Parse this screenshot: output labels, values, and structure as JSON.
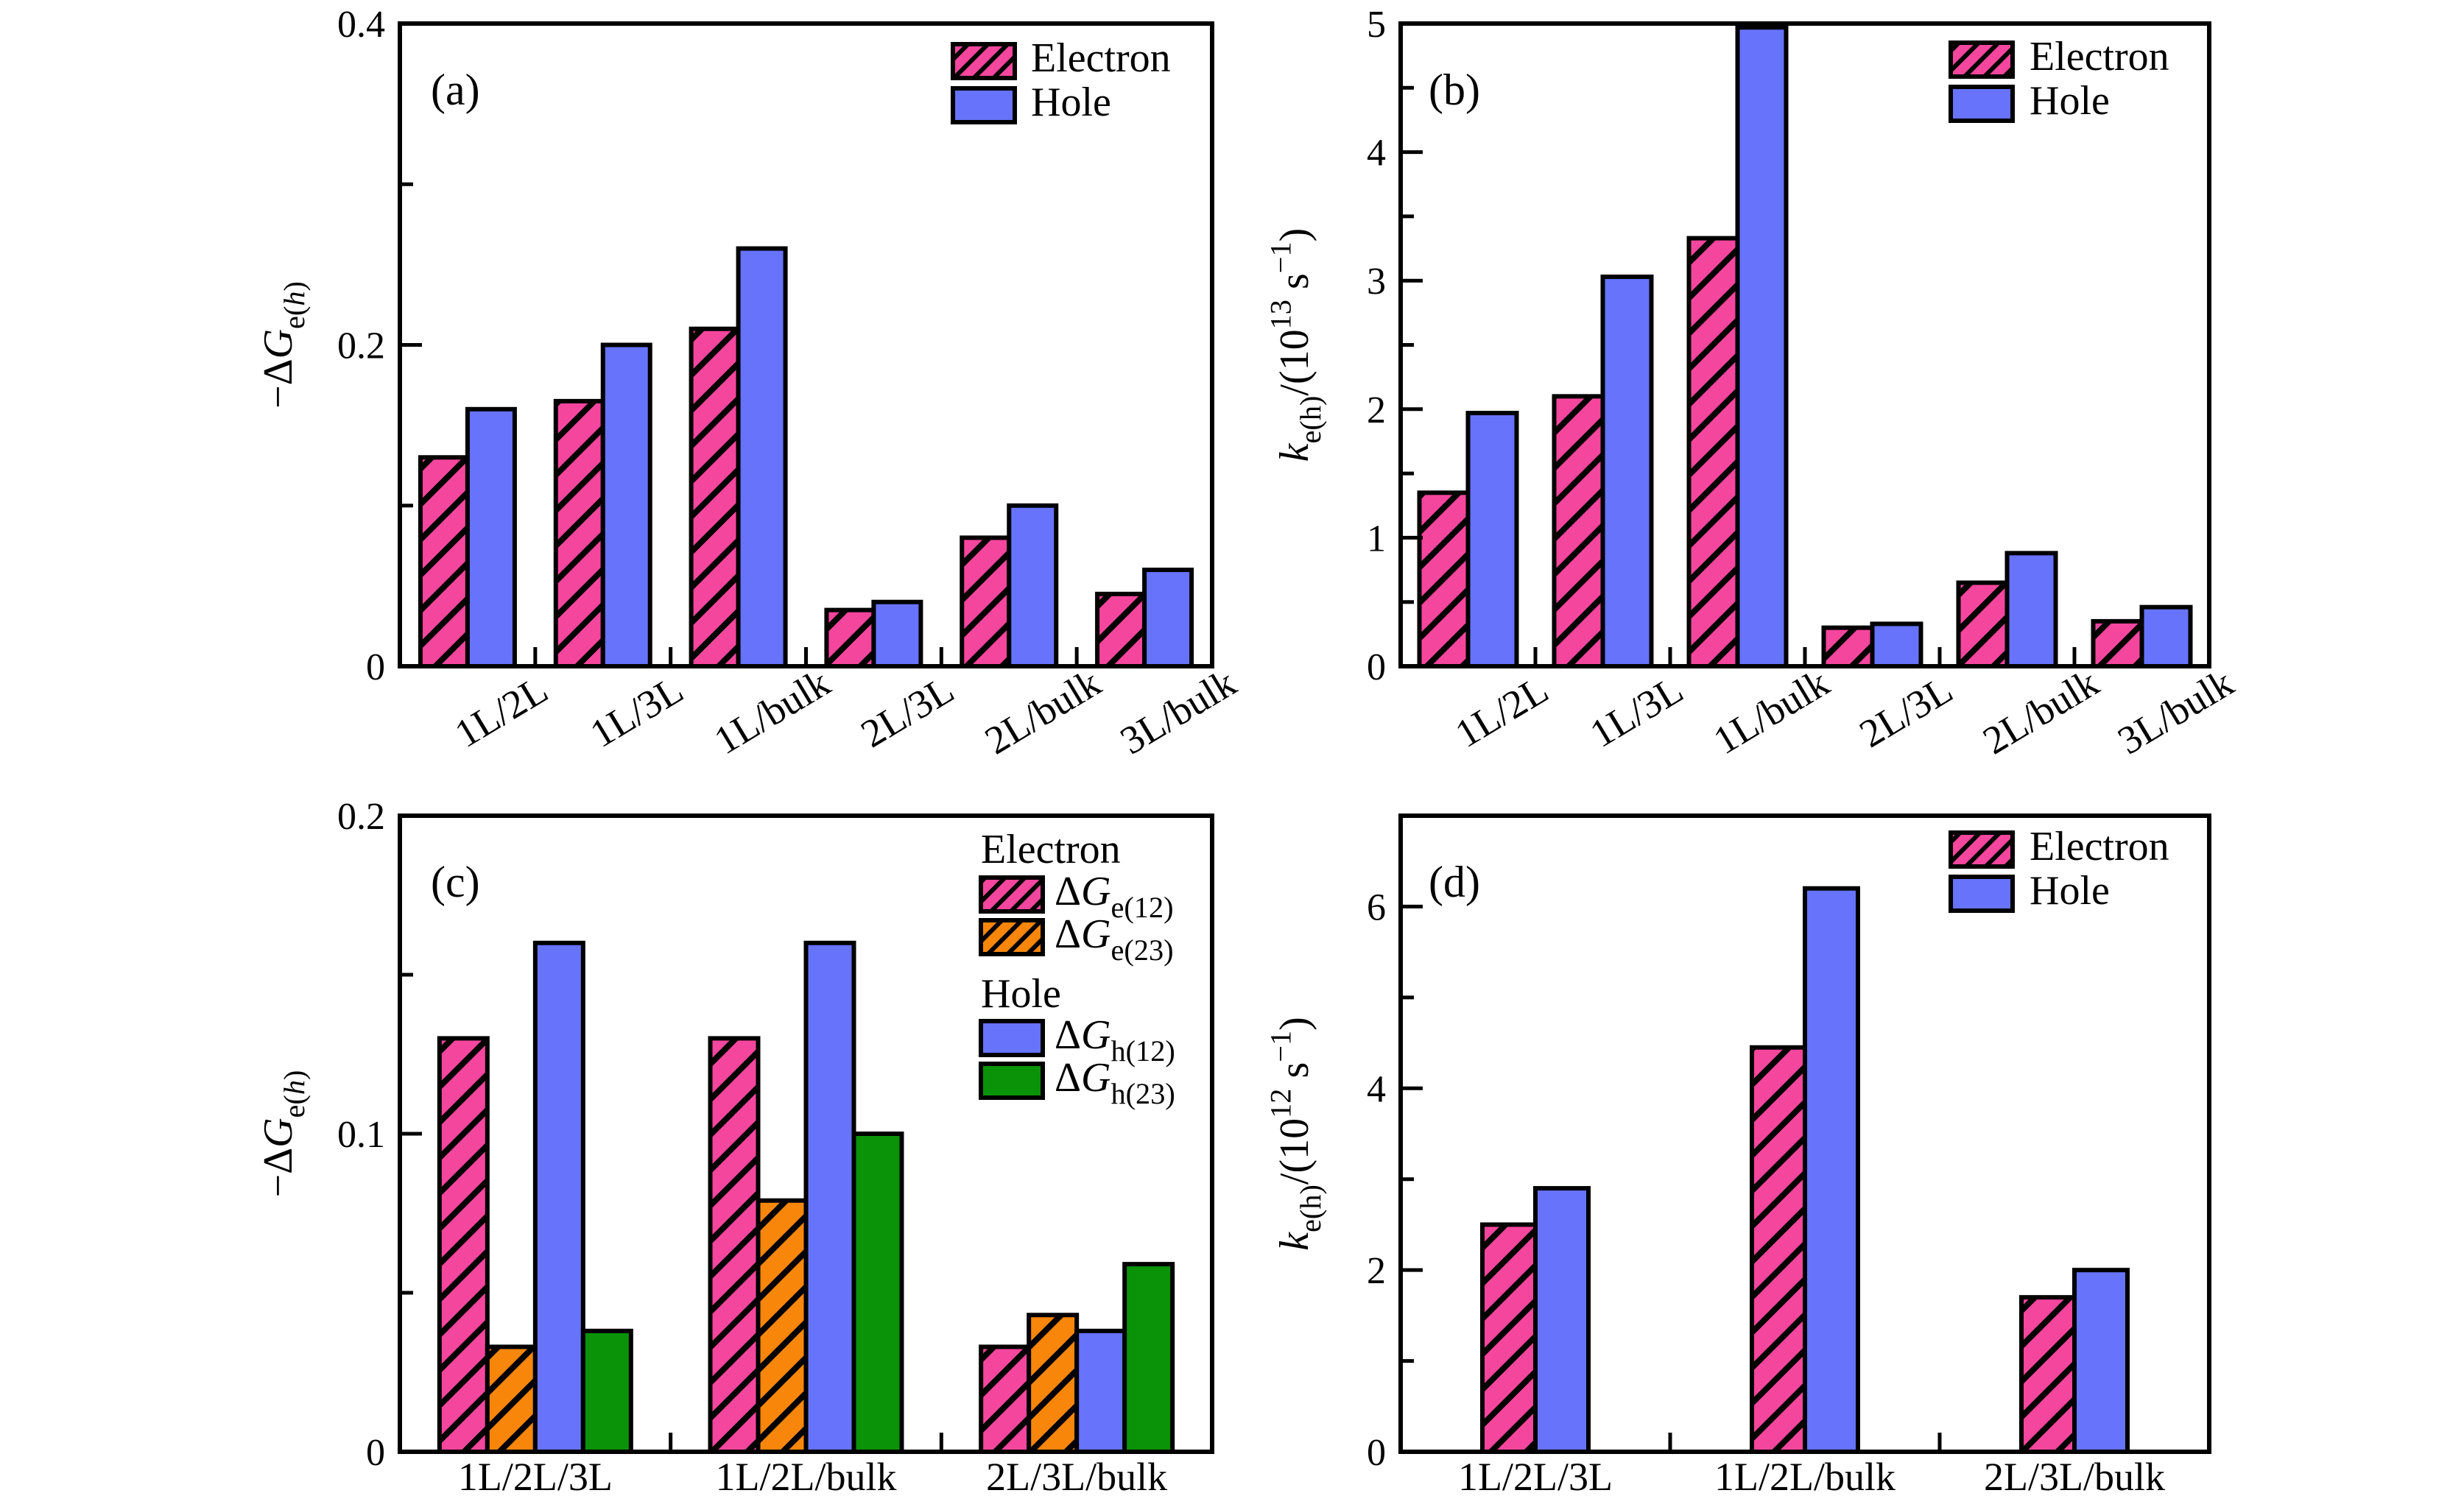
{
  "figure": {
    "background": "#ffffff",
    "colors": {
      "electron_pink": "#F5469E",
      "hole_blue": "#6673FA",
      "electron_orange": "#F8860B",
      "hole_green": "#0A9309",
      "edge": "#000000"
    }
  },
  "chart_data": [
    {
      "id": "a",
      "type": "bar",
      "panel_label": "(a)",
      "categories": [
        "1L/2L",
        "1L/3L",
        "1L/bulk",
        "2L/3L",
        "2L/bulk",
        "3L/bulk"
      ],
      "series": [
        {
          "name": "Electron",
          "color_key": "pink",
          "hatch": true,
          "values": [
            0.13,
            0.165,
            0.21,
            0.035,
            0.08,
            0.045
          ]
        },
        {
          "name": "Hole",
          "color_key": "blue",
          "hatch": false,
          "values": [
            0.16,
            0.2,
            0.26,
            0.04,
            0.1,
            0.06
          ]
        }
      ],
      "ylabel_tokens": [
        {
          "t": "−Δ"
        },
        {
          "t": "G",
          "i": true
        },
        {
          "t": "e(",
          "sub": true
        },
        {
          "t": "h",
          "sub": true,
          "i": true
        },
        {
          "t": ")",
          "sub": true
        }
      ],
      "ylim": [
        0,
        0.4
      ],
      "yticks": [
        {
          "v": 0,
          "label": "0"
        },
        {
          "v": 0.2,
          "label": "0.2"
        },
        {
          "v": 0.4,
          "label": "0.4"
        }
      ],
      "yminor": [
        0.1,
        0.3
      ],
      "xtick_rotation": -31,
      "grid": false,
      "legend": {
        "style": "rows",
        "position": "top-right",
        "entries": [
          {
            "swatch": "pink",
            "hatch": true,
            "label_tokens": [
              {
                "t": "Electron"
              }
            ]
          },
          {
            "swatch": "blue",
            "hatch": false,
            "label_tokens": [
              {
                "t": "Hole"
              }
            ]
          }
        ]
      }
    },
    {
      "id": "b",
      "type": "bar",
      "panel_label": "(b)",
      "categories": [
        "1L/2L",
        "1L/3L",
        "1L/bulk",
        "2L/3L",
        "2L/bulk",
        "3L/bulk"
      ],
      "series": [
        {
          "name": "Electron",
          "color_key": "pink",
          "hatch": true,
          "values": [
            1.35,
            2.1,
            3.33,
            0.3,
            0.65,
            0.35
          ]
        },
        {
          "name": "Hole",
          "color_key": "blue",
          "hatch": false,
          "values": [
            1.97,
            3.03,
            4.97,
            0.33,
            0.88,
            0.46
          ]
        }
      ],
      "ylabel_tokens": [
        {
          "t": "k",
          "i": true
        },
        {
          "t": "e(h)",
          "sub": true
        },
        {
          "t": "/(10"
        },
        {
          "t": "13",
          "sup": true
        },
        {
          "t": " s",
          "i": false
        },
        {
          "t": "−1",
          "sup": true
        },
        {
          "t": ")"
        }
      ],
      "ylim": [
        0,
        5
      ],
      "yticks": [
        {
          "v": 0,
          "label": "0"
        },
        {
          "v": 1,
          "label": "1"
        },
        {
          "v": 2,
          "label": "2"
        },
        {
          "v": 3,
          "label": "3"
        },
        {
          "v": 4,
          "label": "4"
        },
        {
          "v": 5,
          "label": "5"
        }
      ],
      "yminor": [
        0.5,
        1.5,
        2.5,
        3.5,
        4.5
      ],
      "xtick_rotation": -31,
      "grid": false,
      "legend": {
        "style": "rows",
        "position": "top-right",
        "entries": [
          {
            "swatch": "pink",
            "hatch": true,
            "label_tokens": [
              {
                "t": "Electron"
              }
            ]
          },
          {
            "swatch": "blue",
            "hatch": false,
            "label_tokens": [
              {
                "t": "Hole"
              }
            ]
          }
        ]
      }
    },
    {
      "id": "c",
      "type": "bar",
      "panel_label": "(c)",
      "categories": [
        "1L/2L/3L",
        "1L/2L/bulk",
        "2L/3L/bulk"
      ],
      "series": [
        {
          "name": "ΔG_e(12)",
          "color_key": "pink",
          "hatch": true,
          "values": [
            0.13,
            0.13,
            0.033
          ]
        },
        {
          "name": "ΔG_e(23)",
          "color_key": "orange",
          "hatch": true,
          "values": [
            0.033,
            0.079,
            0.043
          ]
        },
        {
          "name": "ΔG_h(12)",
          "color_key": "blue",
          "hatch": false,
          "values": [
            0.16,
            0.16,
            0.038
          ]
        },
        {
          "name": "ΔG_h(23)",
          "color_key": "green",
          "hatch": false,
          "values": [
            0.038,
            0.1,
            0.059
          ]
        }
      ],
      "ylabel_tokens": [
        {
          "t": "−Δ"
        },
        {
          "t": "G",
          "i": true
        },
        {
          "t": "e(",
          "sub": true
        },
        {
          "t": "h",
          "sub": true,
          "i": true
        },
        {
          "t": ")",
          "sub": true
        }
      ],
      "ylim": [
        0,
        0.2
      ],
      "yticks": [
        {
          "v": 0,
          "label": "0"
        },
        {
          "v": 0.1,
          "label": "0.1"
        },
        {
          "v": 0.2,
          "label": "0.2"
        }
      ],
      "yminor": [
        0.05,
        0.15
      ],
      "xtick_rotation": 0,
      "grid": false,
      "legend": {
        "style": "grouped",
        "position": "top-right",
        "groups": [
          {
            "header": "Electron",
            "entries": [
              {
                "swatch": "pink",
                "hatch": true,
                "label_tokens": [
                  {
                    "t": "Δ"
                  },
                  {
                    "t": "G",
                    "i": true
                  },
                  {
                    "t": "e(12)",
                    "sub": true
                  }
                ]
              },
              {
                "swatch": "orange",
                "hatch": true,
                "label_tokens": [
                  {
                    "t": "Δ"
                  },
                  {
                    "t": "G",
                    "i": true
                  },
                  {
                    "t": "e(23)",
                    "sub": true
                  }
                ]
              }
            ]
          },
          {
            "header": "Hole",
            "entries": [
              {
                "swatch": "blue",
                "hatch": false,
                "label_tokens": [
                  {
                    "t": "Δ"
                  },
                  {
                    "t": "G",
                    "i": true
                  },
                  {
                    "t": "h(12)",
                    "sub": true
                  }
                ]
              },
              {
                "swatch": "green",
                "hatch": false,
                "label_tokens": [
                  {
                    "t": "Δ"
                  },
                  {
                    "t": "G",
                    "i": true
                  },
                  {
                    "t": "h(23)",
                    "sub": true
                  }
                ]
              }
            ]
          }
        ]
      }
    },
    {
      "id": "d",
      "type": "bar",
      "panel_label": "(d)",
      "categories": [
        "1L/2L/3L",
        "1L/2L/bulk",
        "2L/3L/bulk"
      ],
      "series": [
        {
          "name": "Electron",
          "color_key": "pink",
          "hatch": true,
          "values": [
            2.5,
            4.45,
            1.7
          ]
        },
        {
          "name": "Hole",
          "color_key": "blue",
          "hatch": false,
          "values": [
            2.9,
            6.2,
            2.0
          ]
        }
      ],
      "ylabel_tokens": [
        {
          "t": "k",
          "i": true
        },
        {
          "t": "e(h)",
          "sub": true
        },
        {
          "t": "/(10"
        },
        {
          "t": "12",
          "sup": true
        },
        {
          "t": " s",
          "i": false
        },
        {
          "t": "−1",
          "sup": true
        },
        {
          "t": ")"
        }
      ],
      "ylim": [
        0,
        7
      ],
      "yticks": [
        {
          "v": 0,
          "label": "0"
        },
        {
          "v": 2,
          "label": "2"
        },
        {
          "v": 4,
          "label": "4"
        },
        {
          "v": 6,
          "label": "6"
        }
      ],
      "yminor": [
        1,
        3,
        5
      ],
      "xtick_rotation": 0,
      "grid": false,
      "legend": {
        "style": "rows",
        "position": "top-right",
        "entries": [
          {
            "swatch": "pink",
            "hatch": true,
            "label_tokens": [
              {
                "t": "Electron"
              }
            ]
          },
          {
            "swatch": "blue",
            "hatch": false,
            "label_tokens": [
              {
                "t": "Hole"
              }
            ]
          }
        ]
      }
    }
  ]
}
